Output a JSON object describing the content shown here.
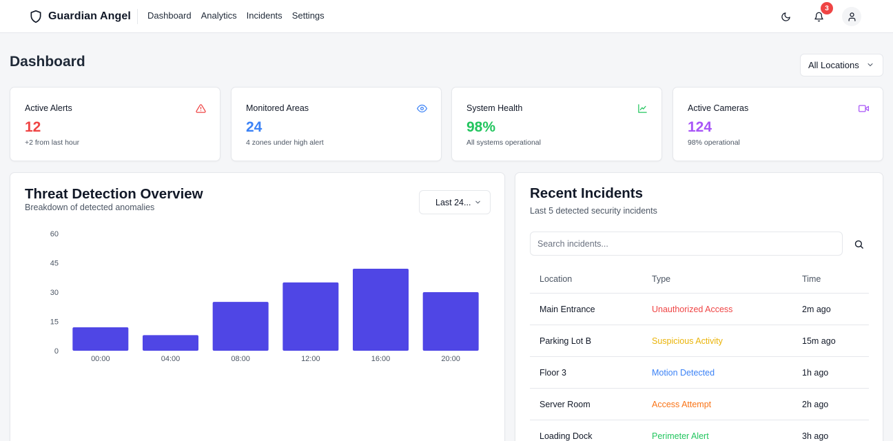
{
  "app": {
    "brand": "Guardian Angel",
    "nav": [
      "Dashboard",
      "Analytics",
      "Incidents",
      "Settings"
    ],
    "notification_count": "3"
  },
  "page": {
    "title": "Dashboard",
    "location_filter": "All Locations"
  },
  "stats": [
    {
      "label": "Active Alerts",
      "value": "12",
      "sub": "+2 from last hour",
      "color": "#ef4444",
      "icon": "alert-triangle-icon"
    },
    {
      "label": "Monitored Areas",
      "value": "24",
      "sub": "4 zones under high alert",
      "color": "#3b82f6",
      "icon": "eye-icon"
    },
    {
      "label": "System Health",
      "value": "98%",
      "sub": "All systems operational",
      "color": "#22c55e",
      "icon": "line-chart-icon"
    },
    {
      "label": "Active Cameras",
      "value": "124",
      "sub": "98% operational",
      "color": "#a855f7",
      "icon": "video-camera-icon"
    }
  ],
  "threat": {
    "title": "Threat Detection Overview",
    "subtitle": "Breakdown of detected anomalies",
    "range": "Last 24..."
  },
  "chart_data": {
    "type": "bar",
    "categories": [
      "00:00",
      "04:00",
      "08:00",
      "12:00",
      "16:00",
      "20:00"
    ],
    "values": [
      12,
      8,
      25,
      35,
      42,
      30
    ],
    "yticks": [
      0,
      15,
      30,
      45,
      60
    ],
    "ylim": [
      0,
      60
    ],
    "color": "#4f46e5",
    "grid": false
  },
  "incidents": {
    "title": "Recent Incidents",
    "subtitle": "Last 5 detected security incidents",
    "search_placeholder": "Search incidents...",
    "columns": [
      "Location",
      "Type",
      "Time"
    ],
    "rows": [
      {
        "location": "Main Entrance",
        "type": "Unauthorized Access",
        "time": "2m ago",
        "color": "#ef4444"
      },
      {
        "location": "Parking Lot B",
        "type": "Suspicious Activity",
        "time": "15m ago",
        "color": "#eab308"
      },
      {
        "location": "Floor 3",
        "type": "Motion Detected",
        "time": "1h ago",
        "color": "#3b82f6"
      },
      {
        "location": "Server Room",
        "type": "Access Attempt",
        "time": "2h ago",
        "color": "#f97316"
      },
      {
        "location": "Loading Dock",
        "type": "Perimeter Alert",
        "time": "3h ago",
        "color": "#22c55e"
      }
    ]
  }
}
